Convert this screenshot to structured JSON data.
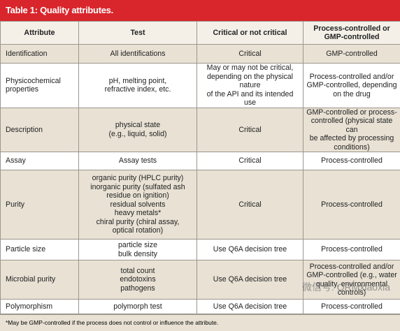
{
  "header": {
    "title": "Table 1: Quality attributes."
  },
  "table": {
    "columns": [
      "Attribute",
      "Test",
      "Critical or not critical",
      "Process-controlled or GMP-controlled"
    ],
    "rows": [
      [
        [
          "Identification"
        ],
        [
          "All identifications"
        ],
        [
          "Critical"
        ],
        [
          "GMP-controlled"
        ]
      ],
      [
        [
          "Physicochemical",
          "properties"
        ],
        [
          "pH, melting point,",
          "refractive index, etc."
        ],
        [
          "May or may not be critical,",
          "depending on the physical nature",
          "of the API and its intended use"
        ],
        [
          "Process-controlled and/or",
          "GMP-controlled, depending",
          "on the drug"
        ]
      ],
      [
        [
          "Description"
        ],
        [
          "physical state",
          "(e.g., liquid, solid)"
        ],
        [
          "Critical"
        ],
        [
          "GMP-controlled or process-",
          "controlled (physical state can",
          "be affected by processing",
          "conditions)"
        ]
      ],
      [
        [
          "Assay"
        ],
        [
          "Assay tests"
        ],
        [
          "Critical"
        ],
        [
          "Process-controlled"
        ]
      ],
      [
        [
          "Purity"
        ],
        [
          "organic purity (HPLC purity)",
          "inorganic purity (sulfated ash",
          "residue on ignition)",
          "residual solvents",
          "heavy metals*",
          "chiral purity (chiral assay,",
          "optical rotation)"
        ],
        [
          "Critical"
        ],
        [
          "Process-controlled"
        ]
      ],
      [
        [
          "Particle size"
        ],
        [
          "particle size",
          "bulk density"
        ],
        [
          "Use Q6A decision tree"
        ],
        [
          "Process-controlled"
        ]
      ],
      [
        [
          "Microbial purity"
        ],
        [
          "total count",
          "endotoxins",
          "pathogens"
        ],
        [
          "Use Q6A decision tree"
        ],
        [
          "Process-controlled and/or",
          "GMP-controlled (e.g., water",
          "quality, environmental",
          "controls)"
        ]
      ],
      [
        [
          "Polymorphism"
        ],
        [
          "polymorph test"
        ],
        [
          "Use Q6A decision tree"
        ],
        [
          "Process-controlled"
        ]
      ]
    ],
    "footnote": "*May be GMP-controlled if the process does not control or influence the attribute."
  },
  "watermark": "微信号: QRMxiaoxia"
}
